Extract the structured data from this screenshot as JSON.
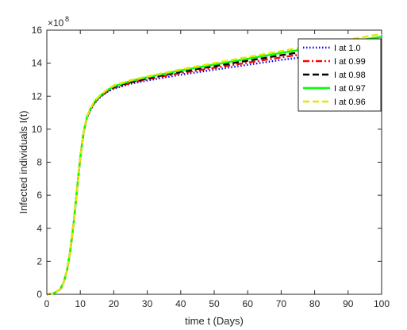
{
  "chart_data": {
    "type": "line",
    "title": "",
    "xlabel": "time t (Days)",
    "ylabel": "Infected individuals I(t)",
    "y_multiplier": "×10",
    "y_multiplier_exp": "8",
    "xlim": [
      0,
      100
    ],
    "ylim": [
      0,
      16
    ],
    "xticks": [
      0,
      10,
      20,
      30,
      40,
      50,
      60,
      70,
      80,
      90,
      100
    ],
    "yticks": [
      0,
      2,
      4,
      6,
      8,
      10,
      12,
      14,
      16
    ],
    "grid": false,
    "legend_position": "top-right",
    "x": [
      0,
      2,
      4,
      5,
      6,
      7,
      8,
      9,
      10,
      11,
      12,
      13,
      14,
      15,
      16,
      18,
      20,
      25,
      30,
      40,
      50,
      60,
      70,
      80,
      90,
      100
    ],
    "series": [
      {
        "name": "I at 1.0",
        "color": "#0000ff",
        "dash": "dotted",
        "values": [
          0,
          0.05,
          0.3,
          0.7,
          1.4,
          2.6,
          4.3,
          6.3,
          8.3,
          9.8,
          10.7,
          11.15,
          11.5,
          11.75,
          11.95,
          12.25,
          12.45,
          12.75,
          12.95,
          13.3,
          13.6,
          13.9,
          14.2,
          14.45,
          14.7,
          14.95
        ]
      },
      {
        "name": "I at 0.99",
        "color": "#ff0000",
        "dash": "dashdot",
        "values": [
          0,
          0.05,
          0.3,
          0.7,
          1.4,
          2.6,
          4.3,
          6.3,
          8.3,
          9.8,
          10.72,
          11.18,
          11.53,
          11.78,
          11.98,
          12.28,
          12.5,
          12.8,
          13.02,
          13.4,
          13.72,
          14.03,
          14.35,
          14.65,
          14.92,
          15.2
        ]
      },
      {
        "name": "I at 0.98",
        "color": "#000000",
        "dash": "dashed",
        "values": [
          0,
          0.05,
          0.3,
          0.7,
          1.4,
          2.6,
          4.3,
          6.3,
          8.3,
          9.8,
          10.74,
          11.2,
          11.56,
          11.81,
          12.01,
          12.32,
          12.55,
          12.86,
          13.08,
          13.48,
          13.82,
          14.15,
          14.48,
          14.8,
          15.1,
          15.4
        ]
      },
      {
        "name": "I at 0.97",
        "color": "#00ff00",
        "dash": "solid",
        "values": [
          0,
          0.05,
          0.3,
          0.7,
          1.4,
          2.6,
          4.3,
          6.3,
          8.3,
          9.8,
          10.76,
          11.23,
          11.59,
          11.84,
          12.04,
          12.36,
          12.6,
          12.92,
          13.15,
          13.56,
          13.92,
          14.27,
          14.62,
          14.95,
          15.27,
          15.6
        ]
      },
      {
        "name": "I at 0.96",
        "color": "#e6e600",
        "dash": "dashed",
        "values": [
          0,
          0.05,
          0.3,
          0.7,
          1.4,
          2.6,
          4.3,
          6.3,
          8.3,
          9.8,
          10.78,
          11.25,
          11.62,
          11.87,
          12.07,
          12.4,
          12.65,
          12.97,
          13.2,
          13.62,
          14.0,
          14.37,
          14.73,
          15.08,
          15.42,
          15.77
        ]
      }
    ]
  }
}
